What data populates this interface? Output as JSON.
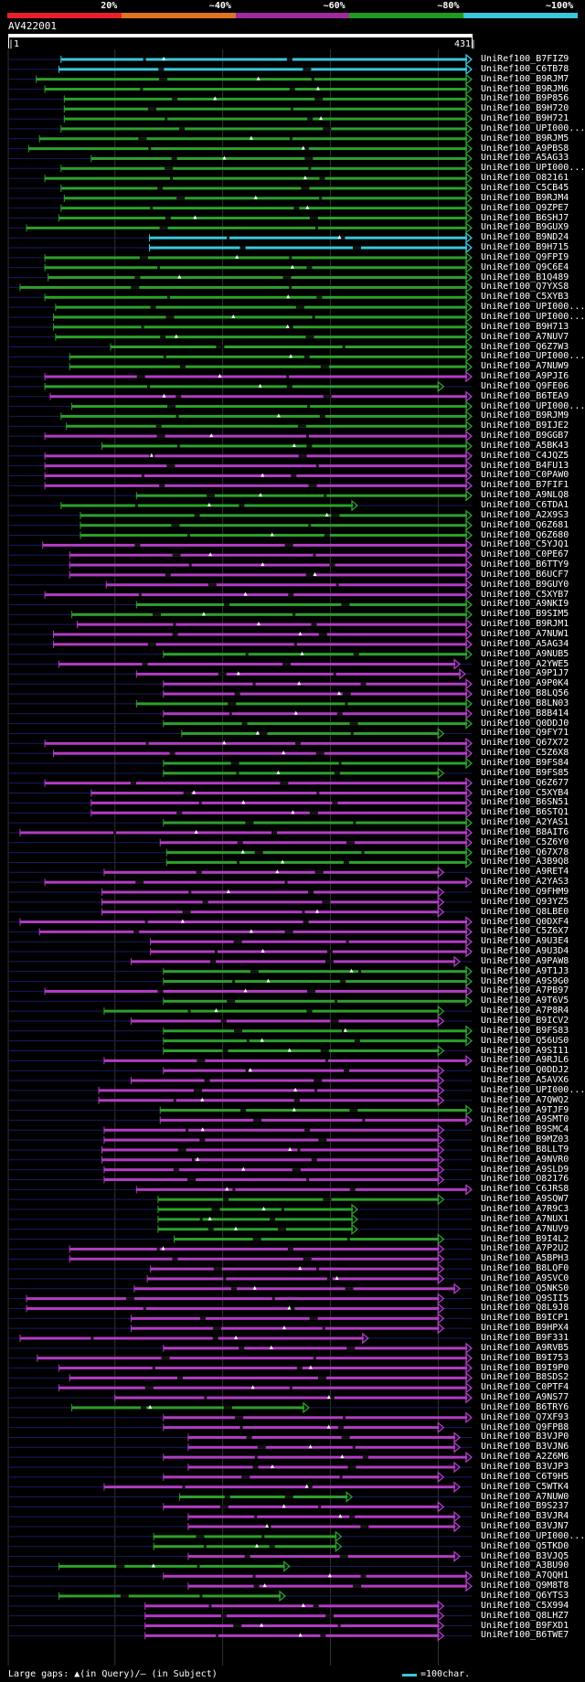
{
  "query": {
    "name": "AV422001",
    "start_label": "|1",
    "end_label": "431|",
    "length": 431
  },
  "identity_bins": [
    {
      "label": "20%",
      "color": "#e8202a"
    },
    {
      "label": "~40%",
      "color": "#e07320"
    },
    {
      "label": "~60%",
      "color": "#a02a9c"
    },
    {
      "label": "~80%",
      "color": "#1f9a1f"
    },
    {
      "label": "~100%",
      "color": "#3cc6d8"
    }
  ],
  "legend": {
    "gaps_text": "Large gaps: ▲(in Query)/— (in Subject)",
    "scale_text": "=100char.",
    "scale_color": "#3cc6d8"
  },
  "colors": {
    "cyan": "#3cc6d8",
    "green": "#2ca02c",
    "magenta": "#b23cc4",
    "navy": "#1a1a60"
  },
  "chart_data": {
    "type": "alignment-overview",
    "x_range": [
      1,
      431
    ],
    "hits": [
      {
        "id": "UniRef100_B7FIZ9",
        "c": "cyan",
        "s": 50,
        "e": 431
      },
      {
        "id": "UniRef100_C6TB78",
        "c": "cyan",
        "s": 48,
        "e": 431
      },
      {
        "id": "UniRef100_B9RJM7",
        "c": "green",
        "s": 27,
        "e": 431
      },
      {
        "id": "UniRef100_B9RJM6",
        "c": "green",
        "s": 35,
        "e": 431
      },
      {
        "id": "UniRef100_B9P856",
        "c": "green",
        "s": 53,
        "e": 431
      },
      {
        "id": "UniRef100_B9H720",
        "c": "green",
        "s": 53,
        "e": 431
      },
      {
        "id": "UniRef100_B9H721",
        "c": "green",
        "s": 53,
        "e": 431
      },
      {
        "id": "UniRef100_UPI000...",
        "c": "green",
        "s": 50,
        "e": 431
      },
      {
        "id": "UniRef100_B9RJM5",
        "c": "green",
        "s": 30,
        "e": 431
      },
      {
        "id": "UniRef100_A9PBS8",
        "c": "green",
        "s": 20,
        "e": 431
      },
      {
        "id": "UniRef100_A5AG33",
        "c": "green",
        "s": 78,
        "e": 431
      },
      {
        "id": "UniRef100_UPI000...",
        "c": "green",
        "s": 50,
        "e": 431
      },
      {
        "id": "UniRef100_O82161",
        "c": "green",
        "s": 35,
        "e": 431
      },
      {
        "id": "UniRef100_C5CB45",
        "c": "green",
        "s": 50,
        "e": 431
      },
      {
        "id": "UniRef100_B9RJM4",
        "c": "green",
        "s": 53,
        "e": 431
      },
      {
        "id": "UniRef100_Q9ZPE7",
        "c": "green",
        "s": 50,
        "e": 431
      },
      {
        "id": "UniRef100_B6SHJ7",
        "c": "green",
        "s": 48,
        "e": 431
      },
      {
        "id": "UniRef100_B9GUX9",
        "c": "green",
        "s": 18,
        "e": 431
      },
      {
        "id": "UniRef100_B9ND24",
        "c": "cyan",
        "s": 132,
        "e": 431
      },
      {
        "id": "UniRef100_B9H715",
        "c": "cyan",
        "s": 132,
        "e": 431
      },
      {
        "id": "UniRef100_Q9FPI9",
        "c": "green",
        "s": 35,
        "e": 431
      },
      {
        "id": "UniRef100_Q9C6E4",
        "c": "green",
        "s": 35,
        "e": 431
      },
      {
        "id": "UniRef100_B1Q489",
        "c": "green",
        "s": 38,
        "e": 431
      },
      {
        "id": "UniRef100_Q7YXS8",
        "c": "green",
        "s": 12,
        "e": 431
      },
      {
        "id": "UniRef100_C5XYB3",
        "c": "green",
        "s": 35,
        "e": 431
      },
      {
        "id": "UniRef100_UPI000...",
        "c": "green",
        "s": 45,
        "e": 431
      },
      {
        "id": "UniRef100_UPI000...",
        "c": "green",
        "s": 43,
        "e": 431
      },
      {
        "id": "UniRef100_B9H713",
        "c": "green",
        "s": 43,
        "e": 431
      },
      {
        "id": "UniRef100_A7NUV7",
        "c": "green",
        "s": 45,
        "e": 431
      },
      {
        "id": "UniRef100_Q6Z7W3",
        "c": "green",
        "s": 96,
        "e": 431
      },
      {
        "id": "UniRef100_UPI000...",
        "c": "green",
        "s": 58,
        "e": 431
      },
      {
        "id": "UniRef100_A7NUW9",
        "c": "green",
        "s": 58,
        "e": 431
      },
      {
        "id": "UniRef100_A9PJI6",
        "c": "magenta",
        "s": 35,
        "e": 431
      },
      {
        "id": "UniRef100_Q9FE06",
        "c": "green",
        "s": 35,
        "e": 405
      },
      {
        "id": "UniRef100_B6TEA9",
        "c": "magenta",
        "s": 40,
        "e": 431
      },
      {
        "id": "UniRef100_UPI000...",
        "c": "green",
        "s": 60,
        "e": 431
      },
      {
        "id": "UniRef100_B9RJM9",
        "c": "green",
        "s": 50,
        "e": 431
      },
      {
        "id": "UniRef100_B9IJE2",
        "c": "green",
        "s": 55,
        "e": 431
      },
      {
        "id": "UniRef100_B9GGB7",
        "c": "magenta",
        "s": 35,
        "e": 431
      },
      {
        "id": "UniRef100_A5BK43",
        "c": "green",
        "s": 88,
        "e": 431
      },
      {
        "id": "UniRef100_C4JQZ5",
        "c": "magenta",
        "s": 35,
        "e": 431
      },
      {
        "id": "UniRef100_B4FU13",
        "c": "magenta",
        "s": 35,
        "e": 431
      },
      {
        "id": "UniRef100_C0PAW0",
        "c": "magenta",
        "s": 35,
        "e": 431
      },
      {
        "id": "UniRef100_B7FIF1",
        "c": "magenta",
        "s": 35,
        "e": 431
      },
      {
        "id": "UniRef100_A9NLQ8",
        "c": "green",
        "s": 120,
        "e": 431
      },
      {
        "id": "UniRef100_C6TDA1",
        "c": "green",
        "s": 50,
        "e": 325
      },
      {
        "id": "UniRef100_A2X9S3",
        "c": "green",
        "s": 68,
        "e": 431
      },
      {
        "id": "UniRef100_Q6Z681",
        "c": "green",
        "s": 68,
        "e": 431
      },
      {
        "id": "UniRef100_Q6Z680",
        "c": "green",
        "s": 68,
        "e": 431
      },
      {
        "id": "UniRef100_C5YJQ1",
        "c": "magenta",
        "s": 33,
        "e": 431
      },
      {
        "id": "UniRef100_C0PE67",
        "c": "magenta",
        "s": 58,
        "e": 431
      },
      {
        "id": "UniRef100_B6TTY9",
        "c": "magenta",
        "s": 58,
        "e": 431
      },
      {
        "id": "UniRef100_B6UCF7",
        "c": "magenta",
        "s": 58,
        "e": 431
      },
      {
        "id": "UniRef100_B9GUY0",
        "c": "magenta",
        "s": 92,
        "e": 431
      },
      {
        "id": "UniRef100_C5XYB7",
        "c": "magenta",
        "s": 35,
        "e": 431
      },
      {
        "id": "UniRef100_A9NKI9",
        "c": "green",
        "s": 120,
        "e": 431
      },
      {
        "id": "UniRef100_B9SIM5",
        "c": "green",
        "s": 60,
        "e": 431
      },
      {
        "id": "UniRef100_B9RJM1",
        "c": "magenta",
        "s": 65,
        "e": 431
      },
      {
        "id": "UniRef100_A7NUW1",
        "c": "magenta",
        "s": 43,
        "e": 431
      },
      {
        "id": "UniRef100_A5AG34",
        "c": "magenta",
        "s": 43,
        "e": 431
      },
      {
        "id": "UniRef100_A9NUB5",
        "c": "green",
        "s": 145,
        "e": 431
      },
      {
        "id": "UniRef100_A2YWE5",
        "c": "magenta",
        "s": 48,
        "e": 420
      },
      {
        "id": "UniRef100_A9P1J7",
        "c": "magenta",
        "s": 120,
        "e": 425
      },
      {
        "id": "UniRef100_A9P0K4",
        "c": "magenta",
        "s": 145,
        "e": 431
      },
      {
        "id": "UniRef100_B8LQ56",
        "c": "magenta",
        "s": 145,
        "e": 431
      },
      {
        "id": "UniRef100_B8LN03",
        "c": "green",
        "s": 120,
        "e": 431
      },
      {
        "id": "UniRef100_B8B414",
        "c": "magenta",
        "s": 145,
        "e": 431
      },
      {
        "id": "UniRef100_Q0DDJ0",
        "c": "green",
        "s": 145,
        "e": 431
      },
      {
        "id": "UniRef100_Q9FY71",
        "c": "green",
        "s": 162,
        "e": 405
      },
      {
        "id": "UniRef100_Q67X72",
        "c": "magenta",
        "s": 35,
        "e": 431
      },
      {
        "id": "UniRef100_C5Z6X8",
        "c": "magenta",
        "s": 43,
        "e": 431
      },
      {
        "id": "UniRef100_B9FS84",
        "c": "green",
        "s": 145,
        "e": 431
      },
      {
        "id": "UniRef100_B9FS85",
        "c": "green",
        "s": 145,
        "e": 405
      },
      {
        "id": "UniRef100_Q6Z677",
        "c": "magenta",
        "s": 35,
        "e": 431
      },
      {
        "id": "UniRef100_C5XYB4",
        "c": "magenta",
        "s": 78,
        "e": 431
      },
      {
        "id": "UniRef100_B6SN51",
        "c": "magenta",
        "s": 78,
        "e": 431
      },
      {
        "id": "UniRef100_B6STQ1",
        "c": "magenta",
        "s": 78,
        "e": 431
      },
      {
        "id": "UniRef100_A2YAS1",
        "c": "green",
        "s": 145,
        "e": 431
      },
      {
        "id": "UniRef100_B8AIT6",
        "c": "magenta",
        "s": 12,
        "e": 431
      },
      {
        "id": "UniRef100_C5Z6Y0",
        "c": "magenta",
        "s": 142,
        "e": 431
      },
      {
        "id": "UniRef100_Q67X78",
        "c": "green",
        "s": 148,
        "e": 431
      },
      {
        "id": "UniRef100_A3B9Q8",
        "c": "green",
        "s": 148,
        "e": 431
      },
      {
        "id": "UniRef100_A9RET4",
        "c": "magenta",
        "s": 90,
        "e": 405
      },
      {
        "id": "UniRef100_A2YAS3",
        "c": "magenta",
        "s": 35,
        "e": 431
      },
      {
        "id": "UniRef100_Q9FHM9",
        "c": "magenta",
        "s": 88,
        "e": 405
      },
      {
        "id": "UniRef100_Q93YZ5",
        "c": "magenta",
        "s": 88,
        "e": 405
      },
      {
        "id": "UniRef100_Q8LBE0",
        "c": "magenta",
        "s": 88,
        "e": 405
      },
      {
        "id": "UniRef100_Q0DXF4",
        "c": "magenta",
        "s": 12,
        "e": 431
      },
      {
        "id": "UniRef100_C5Z6X7",
        "c": "magenta",
        "s": 30,
        "e": 431
      },
      {
        "id": "UniRef100_A9U3E4",
        "c": "magenta",
        "s": 133,
        "e": 431
      },
      {
        "id": "UniRef100_A9U3D4",
        "c": "magenta",
        "s": 133,
        "e": 431
      },
      {
        "id": "UniRef100_A9PAW8",
        "c": "magenta",
        "s": 115,
        "e": 420
      },
      {
        "id": "UniRef100_A9T1J3",
        "c": "green",
        "s": 145,
        "e": 431
      },
      {
        "id": "UniRef100_A9S9G0",
        "c": "green",
        "s": 145,
        "e": 431
      },
      {
        "id": "UniRef100_A7PB97",
        "c": "magenta",
        "s": 35,
        "e": 431
      },
      {
        "id": "UniRef100_A9T6V5",
        "c": "green",
        "s": 145,
        "e": 431
      },
      {
        "id": "UniRef100_A7P8R4",
        "c": "green",
        "s": 90,
        "e": 405
      },
      {
        "id": "UniRef100_B9ICV2",
        "c": "magenta",
        "s": 115,
        "e": 405
      },
      {
        "id": "UniRef100_B9FS83",
        "c": "green",
        "s": 145,
        "e": 431
      },
      {
        "id": "UniRef100_Q56US0",
        "c": "green",
        "s": 145,
        "e": 431
      },
      {
        "id": "UniRef100_A9SI11",
        "c": "green",
        "s": 145,
        "e": 405
      },
      {
        "id": "UniRef100_A9RJL6",
        "c": "magenta",
        "s": 90,
        "e": 431
      },
      {
        "id": "UniRef100_Q0DDJ2",
        "c": "magenta",
        "s": 145,
        "e": 405
      },
      {
        "id": "UniRef100_A5AVX6",
        "c": "magenta",
        "s": 115,
        "e": 405
      },
      {
        "id": "UniRef100_UPI000...",
        "c": "magenta",
        "s": 85,
        "e": 405
      },
      {
        "id": "UniRef100_A7QWQ2",
        "c": "magenta",
        "s": 85,
        "e": 405
      },
      {
        "id": "UniRef100_A9TJF9",
        "c": "green",
        "s": 142,
        "e": 431
      },
      {
        "id": "UniRef100_A9SMT0",
        "c": "magenta",
        "s": 142,
        "e": 431
      },
      {
        "id": "UniRef100_B9SMC4",
        "c": "magenta",
        "s": 90,
        "e": 405
      },
      {
        "id": "UniRef100_B9MZ03",
        "c": "magenta",
        "s": 90,
        "e": 405
      },
      {
        "id": "UniRef100_B8LLT9",
        "c": "magenta",
        "s": 88,
        "e": 405
      },
      {
        "id": "UniRef100_A9NVR0",
        "c": "magenta",
        "s": 88,
        "e": 405
      },
      {
        "id": "UniRef100_A9SLD9",
        "c": "magenta",
        "s": 90,
        "e": 405
      },
      {
        "id": "UniRef100_O82176",
        "c": "magenta",
        "s": 90,
        "e": 405
      },
      {
        "id": "UniRef100_C6JRS8",
        "c": "magenta",
        "s": 120,
        "e": 431
      },
      {
        "id": "UniRef100_A9SQW7",
        "c": "green",
        "s": 140,
        "e": 405
      },
      {
        "id": "UniRef100_A7R9C3",
        "c": "green",
        "s": 140,
        "e": 325
      },
      {
        "id": "UniRef100_A7NUX1",
        "c": "green",
        "s": 140,
        "e": 325
      },
      {
        "id": "UniRef100_A7NUV9",
        "c": "green",
        "s": 140,
        "e": 325
      },
      {
        "id": "UniRef100_B9I4L2",
        "c": "green",
        "s": 155,
        "e": 405
      },
      {
        "id": "UniRef100_A7P2U2",
        "c": "magenta",
        "s": 58,
        "e": 405
      },
      {
        "id": "UniRef100_A5BPH3",
        "c": "magenta",
        "s": 58,
        "e": 405
      },
      {
        "id": "UniRef100_B8LQF0",
        "c": "magenta",
        "s": 133,
        "e": 405
      },
      {
        "id": "UniRef100_A9SVC0",
        "c": "magenta",
        "s": 130,
        "e": 405
      },
      {
        "id": "UniRef100_Q5NKS0",
        "c": "magenta",
        "s": 118,
        "e": 420
      },
      {
        "id": "UniRef100_Q9SII5",
        "c": "magenta",
        "s": 18,
        "e": 405
      },
      {
        "id": "UniRef100_Q8L9J8",
        "c": "magenta",
        "s": 18,
        "e": 405
      },
      {
        "id": "UniRef100_B9ICP1",
        "c": "magenta",
        "s": 115,
        "e": 405
      },
      {
        "id": "UniRef100_B9HPX4",
        "c": "magenta",
        "s": 115,
        "e": 405
      },
      {
        "id": "UniRef100_B9F331",
        "c": "magenta",
        "s": 12,
        "e": 335
      },
      {
        "id": "UniRef100_A9RVB5",
        "c": "magenta",
        "s": 145,
        "e": 431
      },
      {
        "id": "UniRef100_B9I753",
        "c": "magenta",
        "s": 28,
        "e": 431
      },
      {
        "id": "UniRef100_B9I9P0",
        "c": "magenta",
        "s": 48,
        "e": 431
      },
      {
        "id": "UniRef100_B8SDS2",
        "c": "magenta",
        "s": 58,
        "e": 431
      },
      {
        "id": "UniRef100_C0PTF4",
        "c": "magenta",
        "s": 48,
        "e": 431
      },
      {
        "id": "UniRef100_A9NS77",
        "c": "magenta",
        "s": 100,
        "e": 431
      },
      {
        "id": "UniRef100_B6TRY6",
        "c": "green",
        "s": 60,
        "e": 280
      },
      {
        "id": "UniRef100_Q7XF93",
        "c": "magenta",
        "s": 145,
        "e": 431
      },
      {
        "id": "UniRef100_Q9FPB8",
        "c": "magenta",
        "s": 145,
        "e": 405
      },
      {
        "id": "UniRef100_B3VJP0",
        "c": "magenta",
        "s": 168,
        "e": 420
      },
      {
        "id": "UniRef100_B3VJN6",
        "c": "magenta",
        "s": 168,
        "e": 420
      },
      {
        "id": "UniRef100_A2Z6M6",
        "c": "magenta",
        "s": 145,
        "e": 431
      },
      {
        "id": "UniRef100_B3VJP3",
        "c": "magenta",
        "s": 168,
        "e": 420
      },
      {
        "id": "UniRef100_C6T9H5",
        "c": "magenta",
        "s": 145,
        "e": 405
      },
      {
        "id": "UniRef100_C5WTK4",
        "c": "magenta",
        "s": 90,
        "e": 420
      },
      {
        "id": "UniRef100_A7NUW0",
        "c": "green",
        "s": 160,
        "e": 320
      },
      {
        "id": "UniRef100_B9S237",
        "c": "magenta",
        "s": 145,
        "e": 405
      },
      {
        "id": "UniRef100_B3VJR4",
        "c": "magenta",
        "s": 168,
        "e": 420
      },
      {
        "id": "UniRef100_B3VJN7",
        "c": "magenta",
        "s": 168,
        "e": 420
      },
      {
        "id": "UniRef100_UPI000...",
        "c": "green",
        "s": 136,
        "e": 310
      },
      {
        "id": "UniRef100_Q5TKD0",
        "c": "green",
        "s": 136,
        "e": 310
      },
      {
        "id": "UniRef100_B3VJQ5",
        "c": "magenta",
        "s": 168,
        "e": 420
      },
      {
        "id": "UniRef100_A3BU90",
        "c": "green",
        "s": 48,
        "e": 262
      },
      {
        "id": "UniRef100_A7QQH1",
        "c": "magenta",
        "s": 145,
        "e": 431
      },
      {
        "id": "UniRef100_Q9M8T8",
        "c": "magenta",
        "s": 168,
        "e": 431
      },
      {
        "id": "UniRef100_Q6YTS3",
        "c": "green",
        "s": 48,
        "e": 258
      },
      {
        "id": "UniRef100_C5X994",
        "c": "magenta",
        "s": 128,
        "e": 405
      },
      {
        "id": "UniRef100_Q8LHZ7",
        "c": "magenta",
        "s": 128,
        "e": 405
      },
      {
        "id": "UniRef100_B9FXD1",
        "c": "magenta",
        "s": 128,
        "e": 405
      },
      {
        "id": "UniRef100_B6TWE7",
        "c": "magenta",
        "s": 128,
        "e": 405
      }
    ]
  }
}
